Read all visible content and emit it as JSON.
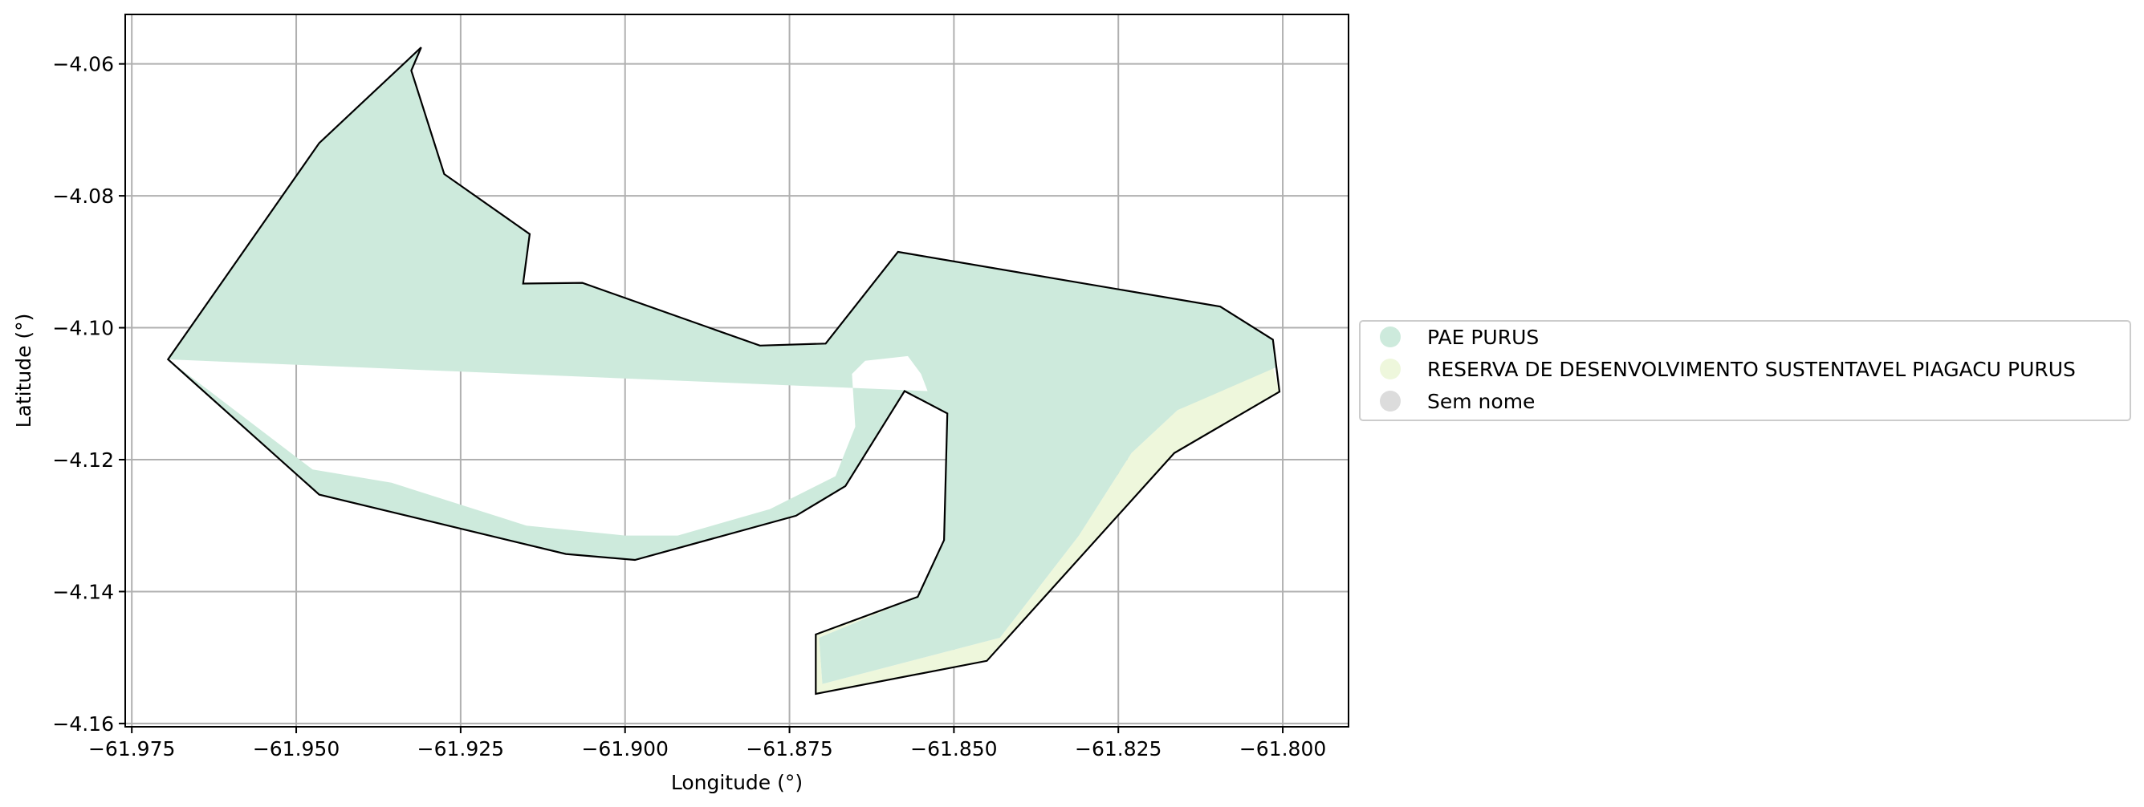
{
  "chart_data": {
    "type": "map",
    "xlabel": "Longitude (°)",
    "ylabel": "Latitude (°)",
    "xlim": [
      -61.976,
      -61.79
    ],
    "ylim": [
      -4.1605,
      -4.0525
    ],
    "grid": true,
    "x_ticks": [
      {
        "value": -61.975,
        "label": "−61.975"
      },
      {
        "value": -61.95,
        "label": "−61.950"
      },
      {
        "value": -61.925,
        "label": "−61.925"
      },
      {
        "value": -61.9,
        "label": "−61.900"
      },
      {
        "value": -61.875,
        "label": "−61.875"
      },
      {
        "value": -61.85,
        "label": "−61.850"
      },
      {
        "value": -61.825,
        "label": "−61.825"
      },
      {
        "value": -61.8,
        "label": "−61.800"
      }
    ],
    "y_ticks": [
      {
        "value": -4.06,
        "label": "−4.06"
      },
      {
        "value": -4.08,
        "label": "−4.08"
      },
      {
        "value": -4.1,
        "label": "−4.10"
      },
      {
        "value": -4.12,
        "label": "−4.12"
      },
      {
        "value": -4.14,
        "label": "−4.14"
      },
      {
        "value": -4.16,
        "label": "−4.16"
      }
    ],
    "legend_position": "right",
    "legend": [
      {
        "label": "PAE PURUS",
        "color": "#cdeadc"
      },
      {
        "label": "RESERVA DE DESENVOLVIMENTO SUSTENTAVEL PIAGACU PURUS",
        "color": "#eef7dc"
      },
      {
        "label": "Sem nome",
        "color": "#dcdcdc"
      }
    ],
    "layers": [
      {
        "name": "RESERVA DE DESENVOLVIMENTO SUSTENTAVEL PIAGACU PURUS",
        "fill": "#eef7dc",
        "stroke": "none",
        "coordinates": [
          [
            -61.9695,
            -4.1048
          ],
          [
            -61.9465,
            -4.1253
          ],
          [
            -61.909,
            -4.1343
          ],
          [
            -61.8985,
            -4.1352
          ],
          [
            -61.874,
            -4.1285
          ],
          [
            -61.8665,
            -4.124
          ],
          [
            -61.8575,
            -4.1096
          ],
          [
            -61.851,
            -4.113
          ],
          [
            -61.8515,
            -4.1322
          ],
          [
            -61.8555,
            -4.1408
          ],
          [
            -61.871,
            -4.1465
          ],
          [
            -61.871,
            -4.1555
          ],
          [
            -61.845,
            -4.1505
          ],
          [
            -61.8165,
            -4.119
          ],
          [
            -61.8005,
            -4.1097
          ],
          [
            -61.8015,
            -4.106
          ],
          [
            -61.816,
            -4.1125
          ],
          [
            -61.823,
            -4.119
          ],
          [
            -61.831,
            -4.1315
          ],
          [
            -61.843,
            -4.147
          ],
          [
            -61.87,
            -4.154
          ],
          [
            -61.8705,
            -4.147
          ],
          [
            -61.8555,
            -4.1408
          ],
          [
            -61.8515,
            -4.1322
          ],
          [
            -61.851,
            -4.113
          ],
          [
            -61.8575,
            -4.1096
          ],
          [
            -61.8665,
            -4.124
          ],
          [
            -61.874,
            -4.1285
          ],
          [
            -61.8985,
            -4.1352
          ],
          [
            -61.909,
            -4.1343
          ],
          [
            -61.9465,
            -4.1253
          ],
          [
            -61.9695,
            -4.1048
          ]
        ]
      },
      {
        "name": "PAE PURUS",
        "fill": "#cdeadc",
        "stroke": "none",
        "coordinates": [
          [
            -61.9695,
            -4.1048
          ],
          [
            -61.9475,
            -4.1215
          ],
          [
            -61.9355,
            -4.1235
          ],
          [
            -61.915,
            -4.13
          ],
          [
            -61.9,
            -4.1315
          ],
          [
            -61.892,
            -4.1315
          ],
          [
            -61.878,
            -4.1275
          ],
          [
            -61.868,
            -4.1225
          ],
          [
            -61.865,
            -4.115
          ],
          [
            -61.8655,
            -4.107
          ],
          [
            -61.8635,
            -4.105
          ],
          [
            -61.857,
            -4.1043
          ],
          [
            -61.855,
            -4.107
          ],
          [
            -61.854,
            -4.1096
          ],
          [
            -61.8575,
            -4.1096
          ],
          [
            -61.8665,
            -4.124
          ],
          [
            -61.874,
            -4.1285
          ],
          [
            -61.8985,
            -4.1352
          ],
          [
            -61.909,
            -4.1343
          ],
          [
            -61.9465,
            -4.1253
          ],
          [
            -61.9695,
            -4.1048
          ],
          [
            -61.9465,
            -4.072
          ],
          [
            -61.931,
            -4.0575
          ],
          [
            -61.9325,
            -4.061
          ],
          [
            -61.9275,
            -4.0767
          ],
          [
            -61.9145,
            -4.0858
          ],
          [
            -61.9155,
            -4.0933
          ],
          [
            -61.9065,
            -4.0932
          ],
          [
            -61.8795,
            -4.1027
          ],
          [
            -61.8695,
            -4.1024
          ],
          [
            -61.8585,
            -4.0885
          ],
          [
            -61.8095,
            -4.0968
          ],
          [
            -61.8015,
            -4.1018
          ],
          [
            -61.801,
            -4.106
          ],
          [
            -61.816,
            -4.1125
          ],
          [
            -61.823,
            -4.119
          ],
          [
            -61.831,
            -4.1315
          ],
          [
            -61.843,
            -4.147
          ],
          [
            -61.87,
            -4.154
          ],
          [
            -61.8705,
            -4.147
          ],
          [
            -61.8555,
            -4.1408
          ],
          [
            -61.8515,
            -4.1322
          ],
          [
            -61.851,
            -4.113
          ],
          [
            -61.8575,
            -4.1096
          ],
          [
            -61.854,
            -4.1096
          ]
        ]
      },
      {
        "name": "Sem nome",
        "fill": "none",
        "stroke": "#000000",
        "coordinates": [
          [
            -61.9695,
            -4.1048
          ],
          [
            -61.9465,
            -4.072
          ],
          [
            -61.931,
            -4.0575
          ],
          [
            -61.9325,
            -4.061
          ],
          [
            -61.9275,
            -4.0767
          ],
          [
            -61.9145,
            -4.0858
          ],
          [
            -61.9155,
            -4.0933
          ],
          [
            -61.9065,
            -4.0932
          ],
          [
            -61.8795,
            -4.1027
          ],
          [
            -61.8695,
            -4.1024
          ],
          [
            -61.8585,
            -4.0885
          ],
          [
            -61.8095,
            -4.0968
          ],
          [
            -61.8015,
            -4.1018
          ],
          [
            -61.8005,
            -4.1097
          ],
          [
            -61.8165,
            -4.119
          ],
          [
            -61.845,
            -4.1505
          ],
          [
            -61.871,
            -4.1555
          ],
          [
            -61.871,
            -4.1465
          ],
          [
            -61.8555,
            -4.1408
          ],
          [
            -61.8515,
            -4.1322
          ],
          [
            -61.851,
            -4.113
          ],
          [
            -61.8575,
            -4.1096
          ],
          [
            -61.8665,
            -4.124
          ],
          [
            -61.874,
            -4.1285
          ],
          [
            -61.8985,
            -4.1352
          ],
          [
            -61.909,
            -4.1343
          ],
          [
            -61.9465,
            -4.1253
          ],
          [
            -61.9695,
            -4.1048
          ]
        ]
      }
    ]
  }
}
